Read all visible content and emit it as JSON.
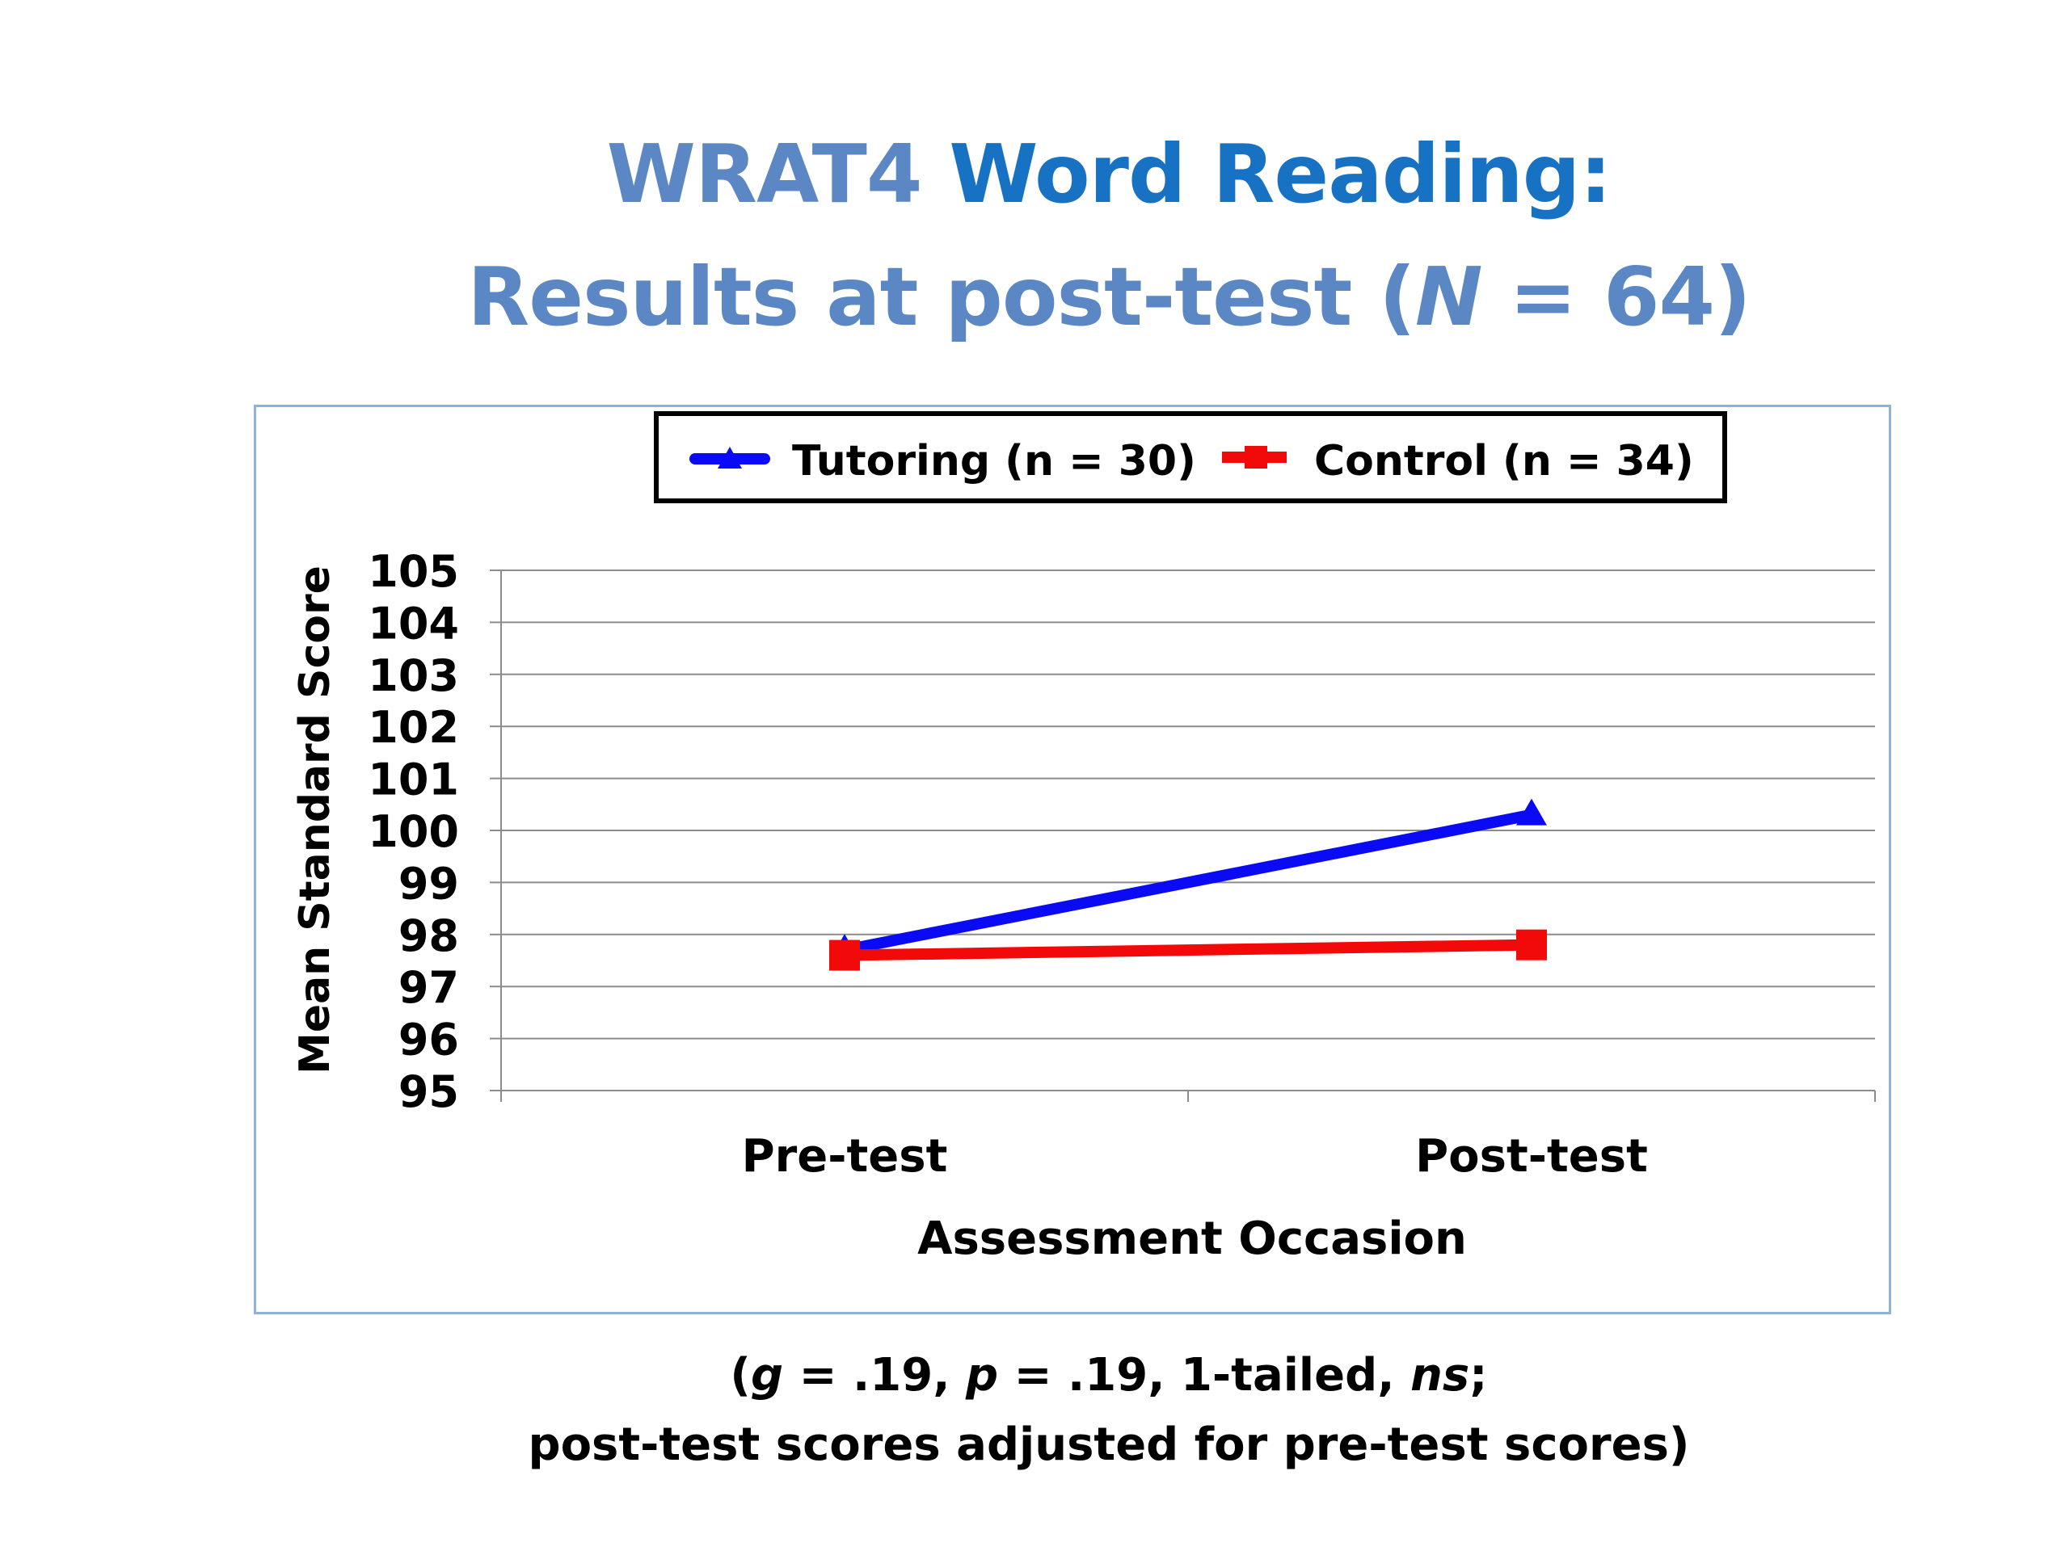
{
  "title": {
    "line1_part1": "WRAT4",
    "line1_part2": "Word Reading:",
    "line2_part1": "Results at post-test (",
    "line2_italic": "N",
    "line2_part2": " = 64)"
  },
  "colors": {
    "title_light": "#5b87c4",
    "title_dark": "#1772c4",
    "tutoring": "#0a0af5",
    "control": "#f20a0a",
    "grid": "#8c8c8c",
    "box_border": "#8fb1da"
  },
  "chart_data": {
    "type": "line",
    "categories": [
      "Pre-test",
      "Post-test"
    ],
    "series": [
      {
        "name": "Tutoring (n = 30)",
        "values": [
          97.7,
          100.3
        ],
        "color": "#0a0af5",
        "marker": "triangle"
      },
      {
        "name": "Control (n = 34)",
        "values": [
          97.6,
          97.8
        ],
        "color": "#f20a0a",
        "marker": "square"
      }
    ],
    "ylim": [
      95,
      105
    ],
    "yticks": [
      "95",
      "96",
      "97",
      "98",
      "99",
      "100",
      "101",
      "102",
      "103",
      "104",
      "105"
    ],
    "ylabel": "Mean Standard Score",
    "xlabel": "Assessment Occasion",
    "grid": true,
    "legend_position": "top"
  },
  "note": {
    "open": "(",
    "g_sym": "g",
    "g_val": " = .19, ",
    "p_sym": "p",
    "p_val": " = .19, 1-tailed, ",
    "ns": "ns",
    "semi": ";",
    "line2": "post-test scores adjusted for pre-test scores)"
  }
}
